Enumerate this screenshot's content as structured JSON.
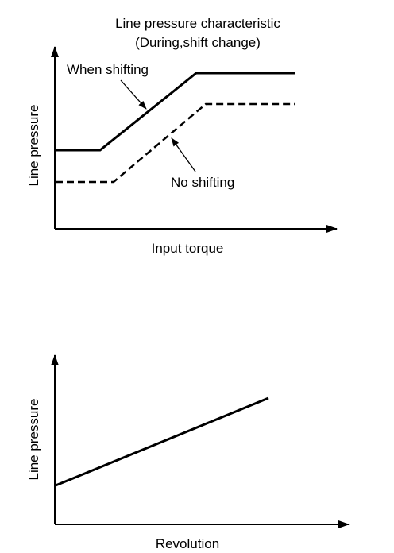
{
  "figure": {
    "chart1": {
      "title_line1": "Line pressure characteristic",
      "title_line2": "(During,shift change)",
      "ylabel": "Line pressure",
      "xlabel": "Input torque",
      "series": [
        {
          "name": "When shifting",
          "style": "solid"
        },
        {
          "name": "No shifting",
          "style": "dashed"
        }
      ]
    },
    "chart2": {
      "ylabel": "Line pressure",
      "xlabel": "Revolution",
      "series": [
        {
          "style": "solid"
        }
      ]
    },
    "colors": {
      "line": "#000000",
      "background": "#ffffff"
    }
  }
}
